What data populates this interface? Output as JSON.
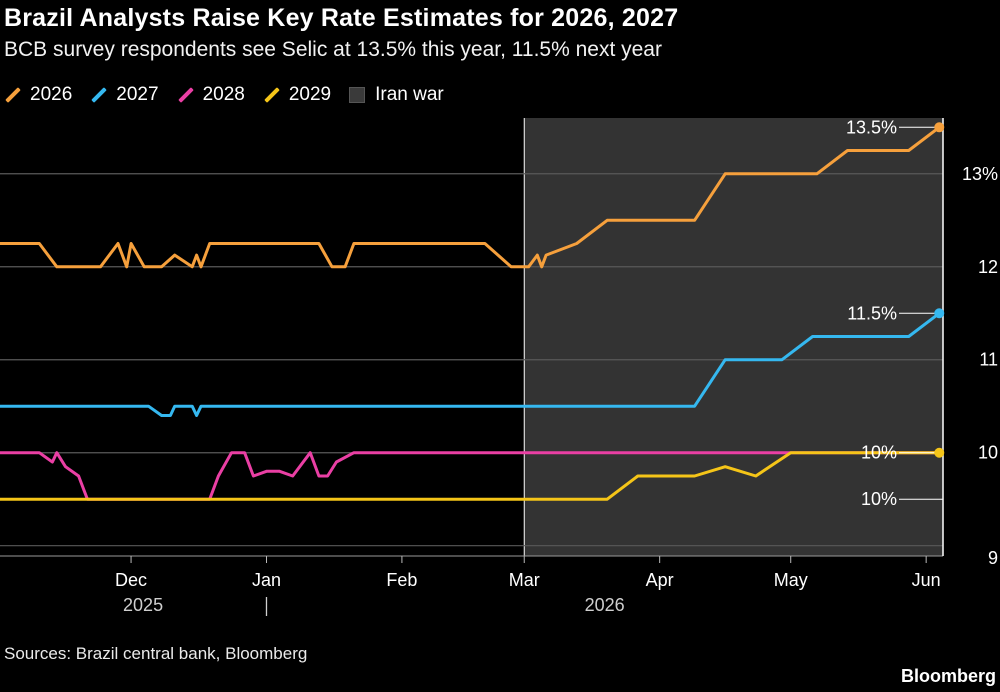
{
  "title": "Brazil Analysts Raise Key Rate Estimates for 2026, 2027",
  "subtitle": "BCB survey respondents see Selic at 13.5% this year, 11.5% next year",
  "legend": [
    {
      "label": "2026",
      "color": "#f6a03c",
      "kind": "line"
    },
    {
      "label": "2027",
      "color": "#35b8f0",
      "kind": "line"
    },
    {
      "label": "2028",
      "color": "#ea3fa4",
      "kind": "line"
    },
    {
      "label": "2029",
      "color": "#f5c518",
      "kind": "line"
    },
    {
      "label": "Iran war",
      "color": "#3a3a3a",
      "kind": "box"
    }
  ],
  "source": "Sources: Brazil central bank, Bloomberg",
  "brand": "Bloomberg",
  "chart_data": {
    "type": "line",
    "x_unit": "date",
    "ylim": [
      8.9,
      13.6
    ],
    "yticks": [
      {
        "value": 13,
        "label": "13%"
      },
      {
        "value": 12,
        "label": "12"
      },
      {
        "value": 11,
        "label": "11"
      },
      {
        "value": 10,
        "label": "10"
      },
      {
        "value": 9,
        "label": "9"
      }
    ],
    "xlim": [
      "2025-11-01",
      "2026-06-06"
    ],
    "month_ticks": [
      {
        "date": "2025-12-01",
        "label": "Dec"
      },
      {
        "date": "2026-01-01",
        "label": "Jan"
      },
      {
        "date": "2026-02-01",
        "label": "Feb"
      },
      {
        "date": "2026-03-01",
        "label": "Mar"
      },
      {
        "date": "2026-04-01",
        "label": "Apr"
      },
      {
        "date": "2026-05-01",
        "label": "May"
      },
      {
        "date": "2026-06-01",
        "label": "Jun"
      }
    ],
    "year_labels": [
      {
        "date": "2025-12-01",
        "label": "2025"
      },
      {
        "date": "2026-04-01",
        "label": "2026"
      }
    ],
    "year_divider": "2026-01-01",
    "grid": true,
    "shaded_region": {
      "label": "Iran war",
      "start": "2026-03-01",
      "end": "2026-06-06"
    },
    "end_labels": [
      {
        "series": "2026",
        "label": "13.5%",
        "value": 13.5
      },
      {
        "series": "2027",
        "label": "11.5%",
        "value": 11.5
      },
      {
        "series": "2028",
        "label": "10%",
        "value": 10
      },
      {
        "series": "2029",
        "label": "10%",
        "value": 9.5
      }
    ],
    "series": [
      {
        "name": "2026",
        "color": "#f6a03c",
        "dot": true,
        "points": [
          [
            "2025-11-01",
            12.25
          ],
          [
            "2025-11-10",
            12.25
          ],
          [
            "2025-11-14",
            12.0
          ],
          [
            "2025-11-24",
            12.0
          ],
          [
            "2025-11-28",
            12.25
          ],
          [
            "2025-11-30",
            12.0
          ],
          [
            "2025-12-01",
            12.25
          ],
          [
            "2025-12-04",
            12.0
          ],
          [
            "2025-12-08",
            12.0
          ],
          [
            "2025-12-11",
            12.125
          ],
          [
            "2025-12-15",
            12.0
          ],
          [
            "2025-12-16",
            12.125
          ],
          [
            "2025-12-17",
            12.0
          ],
          [
            "2025-12-19",
            12.25
          ],
          [
            "2026-01-13",
            12.25
          ],
          [
            "2026-01-16",
            12.0
          ],
          [
            "2026-01-19",
            12.0
          ],
          [
            "2026-01-21",
            12.25
          ],
          [
            "2026-02-20",
            12.25
          ],
          [
            "2026-02-23",
            12.125
          ],
          [
            "2026-02-26",
            12.0
          ],
          [
            "2026-03-02",
            12.0
          ],
          [
            "2026-03-04",
            12.125
          ],
          [
            "2026-03-05",
            12.0
          ],
          [
            "2026-03-06",
            12.125
          ],
          [
            "2026-03-13",
            12.25
          ],
          [
            "2026-03-20",
            12.5
          ],
          [
            "2026-04-09",
            12.5
          ],
          [
            "2026-04-16",
            13.0
          ],
          [
            "2026-05-07",
            13.0
          ],
          [
            "2026-05-14",
            13.25
          ],
          [
            "2026-05-28",
            13.25
          ],
          [
            "2026-06-04",
            13.5
          ]
        ]
      },
      {
        "name": "2027",
        "color": "#35b8f0",
        "dot": true,
        "points": [
          [
            "2025-11-01",
            10.5
          ],
          [
            "2025-12-05",
            10.5
          ],
          [
            "2025-12-08",
            10.4
          ],
          [
            "2025-12-10",
            10.4
          ],
          [
            "2025-12-11",
            10.5
          ],
          [
            "2025-12-15",
            10.5
          ],
          [
            "2025-12-16",
            10.4
          ],
          [
            "2025-12-17",
            10.5
          ],
          [
            "2026-04-09",
            10.5
          ],
          [
            "2026-04-16",
            11.0
          ],
          [
            "2026-04-29",
            11.0
          ],
          [
            "2026-05-06",
            11.25
          ],
          [
            "2026-05-28",
            11.25
          ],
          [
            "2026-06-04",
            11.5
          ]
        ]
      },
      {
        "name": "2028",
        "color": "#ea3fa4",
        "dot": false,
        "points": [
          [
            "2025-11-01",
            10.0
          ],
          [
            "2025-11-10",
            10.0
          ],
          [
            "2025-11-13",
            9.9
          ],
          [
            "2025-11-14",
            10.0
          ],
          [
            "2025-11-16",
            9.85
          ],
          [
            "2025-11-19",
            9.75
          ],
          [
            "2025-11-21",
            9.5
          ],
          [
            "2025-12-19",
            9.5
          ],
          [
            "2025-12-21",
            9.75
          ],
          [
            "2025-12-24",
            10.0
          ],
          [
            "2025-12-27",
            10.0
          ],
          [
            "2025-12-29",
            9.75
          ],
          [
            "2026-01-01",
            9.8
          ],
          [
            "2026-01-04",
            9.8
          ],
          [
            "2026-01-07",
            9.75
          ],
          [
            "2026-01-11",
            10.0
          ],
          [
            "2026-01-13",
            9.75
          ],
          [
            "2026-01-15",
            9.75
          ],
          [
            "2026-01-17",
            9.9
          ],
          [
            "2026-01-21",
            10.0
          ],
          [
            "2026-06-04",
            10.0
          ]
        ]
      },
      {
        "name": "2029",
        "color": "#f5c518",
        "dot": true,
        "points": [
          [
            "2025-11-01",
            9.5
          ],
          [
            "2026-03-20",
            9.5
          ],
          [
            "2026-03-27",
            9.75
          ],
          [
            "2026-04-09",
            9.75
          ],
          [
            "2026-04-16",
            9.85
          ],
          [
            "2026-04-23",
            9.75
          ],
          [
            "2026-05-01",
            10.0
          ],
          [
            "2026-06-04",
            10.0
          ]
        ]
      }
    ]
  }
}
